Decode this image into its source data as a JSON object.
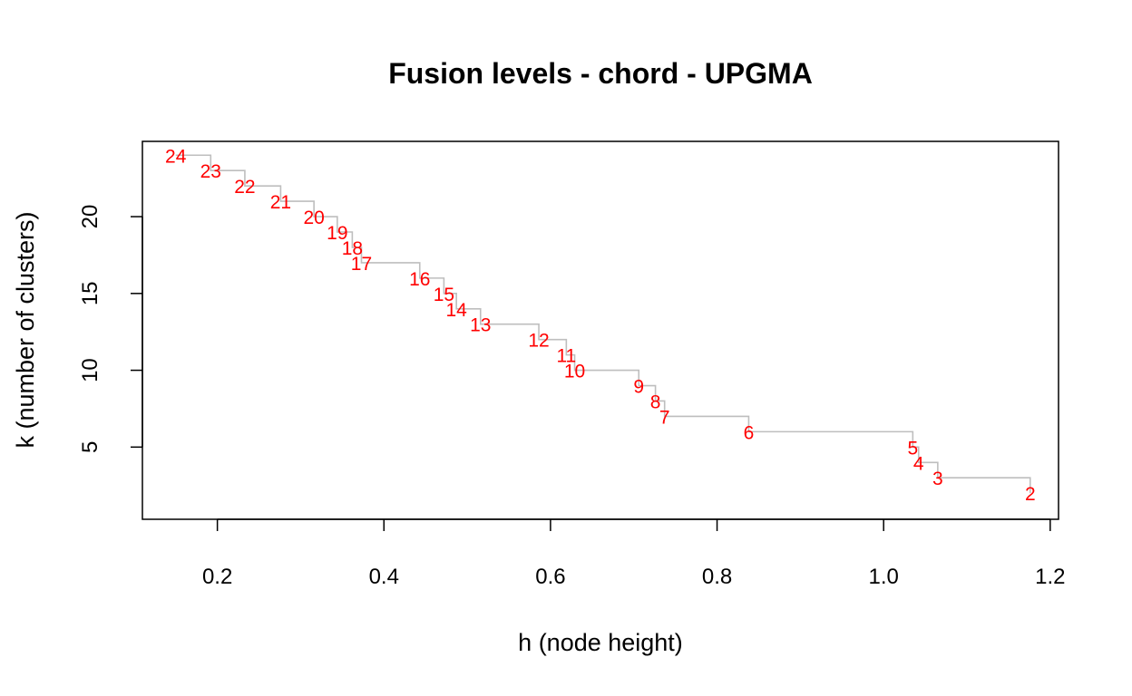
{
  "chart_data": {
    "type": "line",
    "title": "Fusion levels - chord - UPGMA",
    "xlabel": "h (node height)",
    "ylabel": "k (number of clusters)",
    "xlim": [
      0.11,
      1.21
    ],
    "ylim": [
      0.3,
      24.9
    ],
    "x_ticks": [
      0.2,
      0.4,
      0.6,
      0.8,
      1.0,
      1.2
    ],
    "x_tick_labels": [
      "0.2",
      "0.4",
      "0.6",
      "0.8",
      "1.0",
      "1.2"
    ],
    "y_ticks": [
      5,
      10,
      15,
      20
    ],
    "y_tick_labels": [
      "5",
      "10",
      "15",
      "20"
    ],
    "step_color": "#bebebe",
    "label_color": "#ff0000",
    "points": [
      {
        "h": 0.15,
        "k": 24,
        "label": "24"
      },
      {
        "h": 0.192,
        "k": 23,
        "label": "23"
      },
      {
        "h": 0.233,
        "k": 22,
        "label": "22"
      },
      {
        "h": 0.276,
        "k": 21,
        "label": "21"
      },
      {
        "h": 0.316,
        "k": 20,
        "label": "20"
      },
      {
        "h": 0.344,
        "k": 19,
        "label": "19"
      },
      {
        "h": 0.362,
        "k": 18,
        "label": "18"
      },
      {
        "h": 0.373,
        "k": 17,
        "label": "17"
      },
      {
        "h": 0.443,
        "k": 16,
        "label": "16"
      },
      {
        "h": 0.472,
        "k": 15,
        "label": "15"
      },
      {
        "h": 0.487,
        "k": 14,
        "label": "14"
      },
      {
        "h": 0.516,
        "k": 13,
        "label": "13"
      },
      {
        "h": 0.586,
        "k": 12,
        "label": "12"
      },
      {
        "h": 0.619,
        "k": 11,
        "label": "11"
      },
      {
        "h": 0.629,
        "k": 10,
        "label": "10"
      },
      {
        "h": 0.706,
        "k": 9,
        "label": "9"
      },
      {
        "h": 0.726,
        "k": 8,
        "label": "8"
      },
      {
        "h": 0.737,
        "k": 7,
        "label": "7"
      },
      {
        "h": 0.838,
        "k": 6,
        "label": "6"
      },
      {
        "h": 1.035,
        "k": 5,
        "label": "5"
      },
      {
        "h": 1.042,
        "k": 4,
        "label": "4"
      },
      {
        "h": 1.065,
        "k": 3,
        "label": "3"
      },
      {
        "h": 1.176,
        "k": 2,
        "label": "2"
      }
    ]
  }
}
